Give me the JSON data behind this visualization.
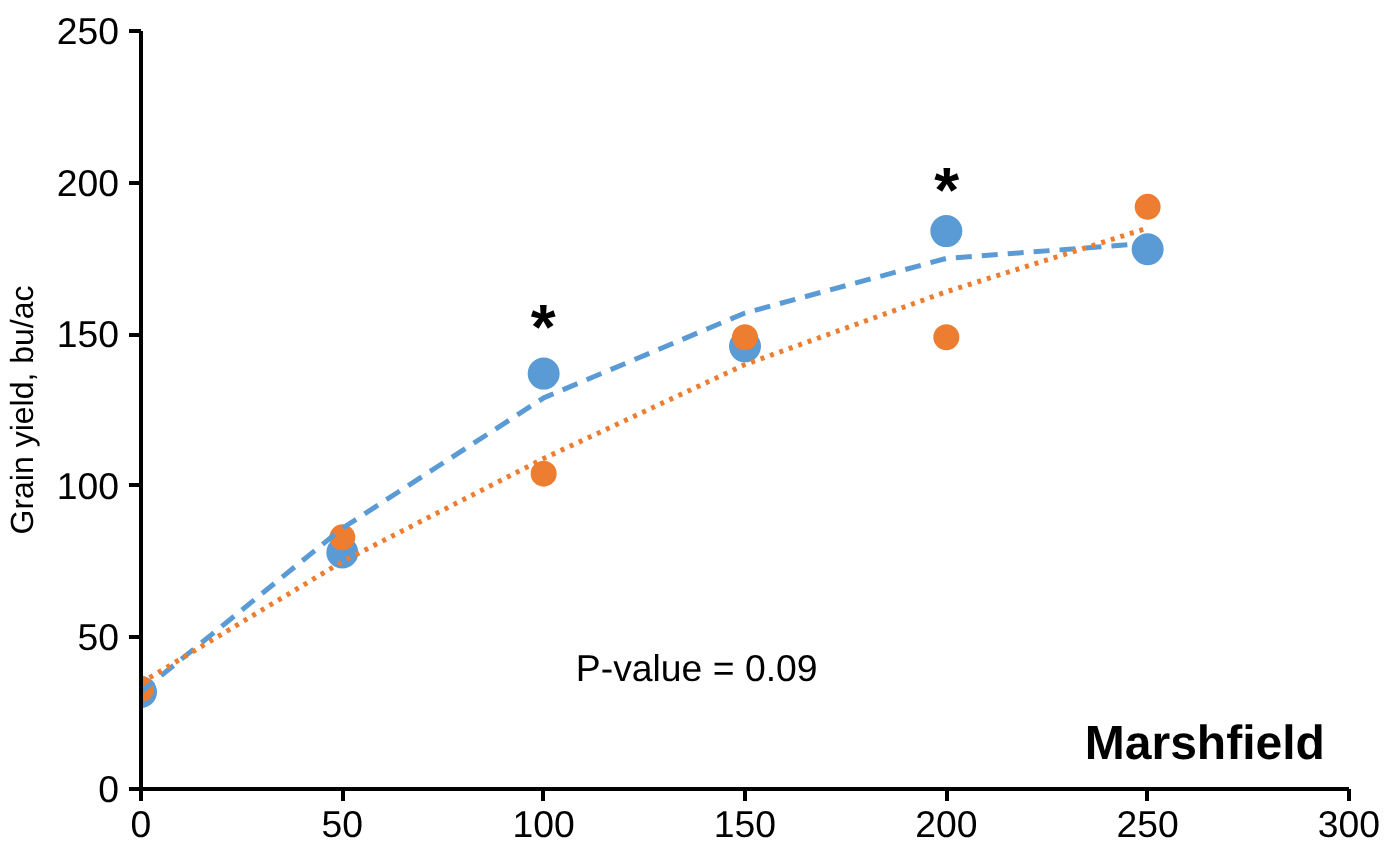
{
  "chart_data": {
    "type": "scatter",
    "ylabel": "Grain yield, bu/ac",
    "xlim": [
      0,
      300
    ],
    "xticks": [
      0,
      50,
      100,
      150,
      200,
      250,
      300
    ],
    "ylim": [
      0,
      250
    ],
    "yticks": [
      0,
      50,
      100,
      150,
      200,
      250
    ],
    "grid": false,
    "x": [
      0,
      50,
      100,
      150,
      200,
      250
    ],
    "series": [
      {
        "color": "#5b9bd5",
        "marker": "circle",
        "values": [
          32,
          78,
          137,
          146,
          184,
          178
        ]
      },
      {
        "color": "#ed7d31",
        "marker": "circle",
        "values": [
          33,
          83,
          104,
          149,
          149,
          192
        ]
      },
      {
        "type": "line",
        "line_style": "dashed",
        "color": "#5b9bd5",
        "x": [
          0,
          50,
          100,
          150,
          200,
          250
        ],
        "values": [
          32,
          86,
          129,
          157,
          175,
          180
        ]
      },
      {
        "type": "line",
        "line_style": "dotted",
        "color": "#ed7d31",
        "x": [
          0,
          50,
          100,
          150,
          200,
          250
        ],
        "values": [
          35,
          75,
          109,
          140,
          164,
          185
        ]
      }
    ],
    "annotations": [
      "*",
      "*",
      "P-value = 0.09",
      "Marshfield"
    ]
  }
}
